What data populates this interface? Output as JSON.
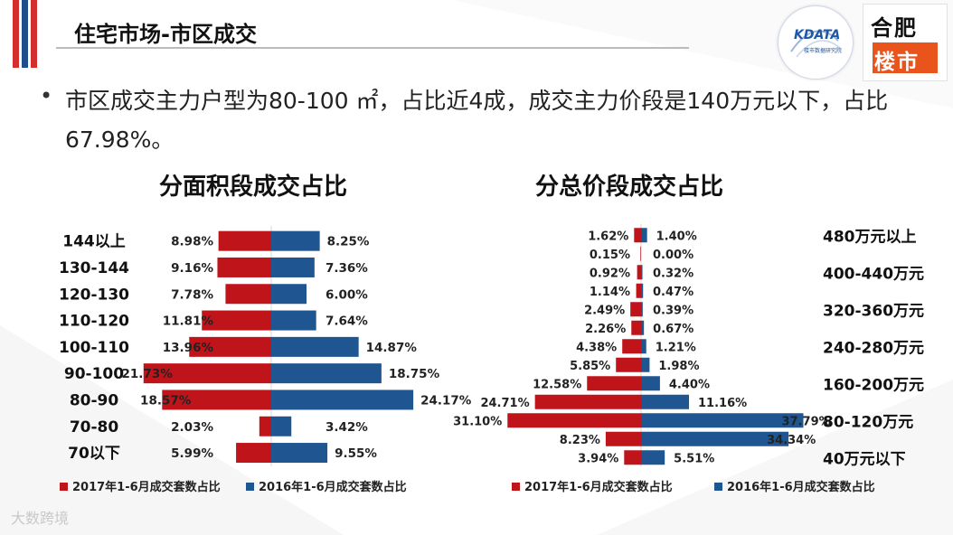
{
  "header": {
    "title": "住宅市场-市区成交",
    "logo_left_text": "DATA",
    "logo_left_letter": "K",
    "logo_left_sub": "楼市数据研究院",
    "logo_right_top": "合肥",
    "logo_right_bottom": "楼市"
  },
  "summary": {
    "bullet": "•",
    "text": "市区成交主力户型为80-100 ㎡，占比近4成，成交主力价段是140万元以下，占比67.98%。"
  },
  "watermark": "大数跨境",
  "colors": {
    "series_2017": "#c0141b",
    "series_2016": "#1f5591",
    "stripe_red": "#d32f2f",
    "stripe_blue": "#1f4e8c"
  },
  "chart_data": [
    {
      "type": "bar",
      "orientation": "horizontal-butterfly",
      "title": "分面积段成交占比",
      "categories": [
        "144以上",
        "130-144",
        "120-130",
        "110-120",
        "100-110",
        "90-100",
        "80-90",
        "70-80",
        "70以下"
      ],
      "series": [
        {
          "name": "2017年1-6月成交套数占比",
          "side": "left",
          "values": [
            8.98,
            9.16,
            7.78,
            11.81,
            13.96,
            21.73,
            18.57,
            2.03,
            5.99
          ],
          "labels": [
            "8.98%",
            "9.16%",
            "7.78%",
            "11.81%",
            "13.96%",
            "21.73%",
            "18.57%",
            "2.03%",
            "5.99%"
          ]
        },
        {
          "name": "2016年1-6月成交套数占比",
          "side": "right",
          "values": [
            8.25,
            7.36,
            6.0,
            7.64,
            14.87,
            18.75,
            24.17,
            3.42,
            9.55
          ],
          "labels": [
            "8.25%",
            "7.36%",
            "6.00%",
            "7.64%",
            "14.87%",
            "18.75%",
            "24.17%",
            "3.42%",
            "9.55%"
          ]
        }
      ],
      "legend": "bottom"
    },
    {
      "type": "bar",
      "orientation": "horizontal-butterfly",
      "title": "分总价段成交占比",
      "categories": [
        "480万元以上",
        "",
        "400-440万元",
        "",
        "320-360万元",
        "",
        "240-280万元",
        "",
        "160-200万元",
        "",
        "80-120万元",
        "",
        "40万元以下"
      ],
      "series": [
        {
          "name": "2017年1-6月成交套数占比",
          "side": "left",
          "values": [
            1.62,
            0.15,
            0.92,
            1.14,
            2.49,
            2.26,
            4.38,
            5.85,
            12.58,
            24.71,
            31.1,
            8.23,
            3.94
          ],
          "labels": [
            "1.62%",
            "0.15%",
            "0.92%",
            "1.14%",
            "2.49%",
            "2.26%",
            "4.38%",
            "5.85%",
            "12.58%",
            "24.71%",
            "31.10%",
            "8.23%",
            "3.94%"
          ]
        },
        {
          "name": "2016年1-6月成交套数占比",
          "side": "right",
          "values": [
            1.4,
            0.0,
            0.32,
            0.47,
            0.39,
            0.67,
            1.21,
            1.98,
            4.4,
            11.16,
            37.79,
            34.34,
            5.51
          ],
          "labels": [
            "1.40%",
            "0.00%",
            "0.32%",
            "0.47%",
            "0.39%",
            "0.67%",
            "1.21%",
            "1.98%",
            "4.40%",
            "11.16%",
            "37.79%",
            "34.34%",
            "5.51%"
          ]
        }
      ],
      "legend": "bottom"
    }
  ]
}
